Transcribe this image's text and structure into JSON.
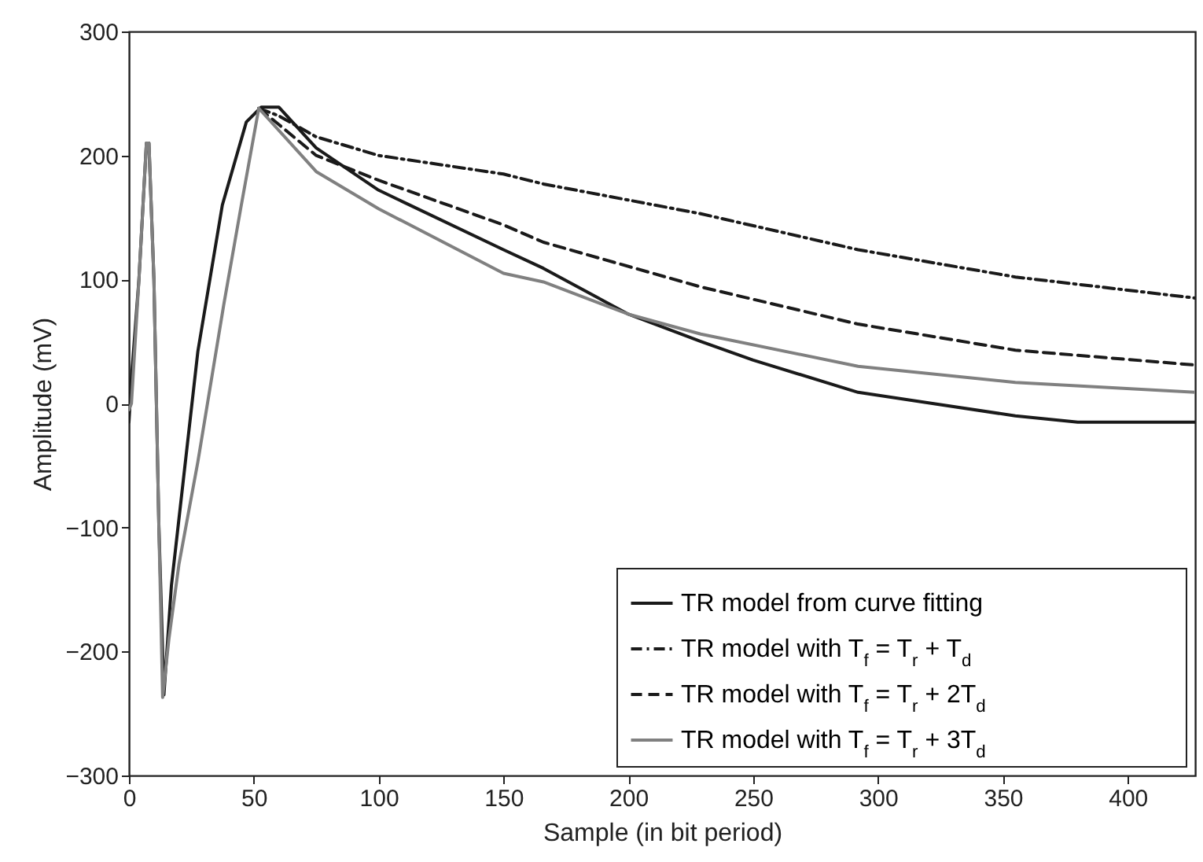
{
  "chart_data": {
    "type": "line",
    "xlabel": "Sample (in bit period)",
    "ylabel": "Amplitude (mV)",
    "xlim": [
      0,
      427
    ],
    "ylim": [
      -300,
      300
    ],
    "xticks": [
      0,
      50,
      100,
      150,
      200,
      250,
      300,
      350,
      400
    ],
    "yticks": [
      -300,
      -200,
      -100,
      0,
      100,
      200,
      300
    ],
    "grid": false,
    "legend": "bottom right",
    "series": [
      {
        "name": "TR model from curve fitting",
        "color": "#1a1a1a",
        "line_style": "solid",
        "x": [
          0,
          1,
          4,
          7,
          8,
          10,
          12,
          14,
          17,
          27.6,
          37.4,
          47,
          53,
          60,
          75,
          100,
          150,
          166,
          200,
          229,
          250,
          292,
          355,
          380,
          427
        ],
        "values": [
          -15,
          20,
          100,
          210,
          210,
          100,
          -100,
          -235,
          -147,
          42,
          160,
          227,
          239,
          239,
          206,
          172,
          124,
          109,
          72,
          50,
          35,
          9,
          -10,
          -15,
          -15
        ]
      },
      {
        "name": "TR model with T$_{f}$ = T$_{r}$ + T$_{d}$",
        "color": "#1a1a1a",
        "line_style": "dotted",
        "x": [
          52,
          60,
          75,
          100,
          150,
          166,
          229,
          292,
          355,
          427
        ],
        "values": [
          238,
          232,
          215,
          200,
          185,
          177,
          153,
          124,
          102,
          85
        ]
      },
      {
        "name": "TR model with T$_{f}$ = T$_{r}$ + 2T$_{d}$",
        "color": "#1a1a1a",
        "line_style": "dashed",
        "x": [
          52,
          60,
          75,
          100,
          150,
          166,
          229,
          292,
          355,
          427
        ],
        "values": [
          238,
          225,
          200,
          180,
          144,
          130,
          94,
          64,
          43,
          31
        ]
      },
      {
        "name": "TR model with T$_{f}$ = T$_{r}$ + 3T$_{d}$",
        "color": "#808080",
        "line_style": "solid",
        "x": [
          0,
          1,
          4,
          7,
          8,
          10,
          12,
          13.5,
          16,
          20,
          27.6,
          38,
          45,
          52,
          75,
          100,
          150,
          166,
          200,
          229,
          292,
          355,
          427
        ],
        "values": [
          -5,
          0,
          100,
          210,
          210,
          100,
          -100,
          -237,
          -190,
          -130,
          -47,
          80,
          160,
          238,
          187,
          157,
          105,
          98,
          72,
          56,
          30,
          17,
          9
        ]
      }
    ]
  }
}
